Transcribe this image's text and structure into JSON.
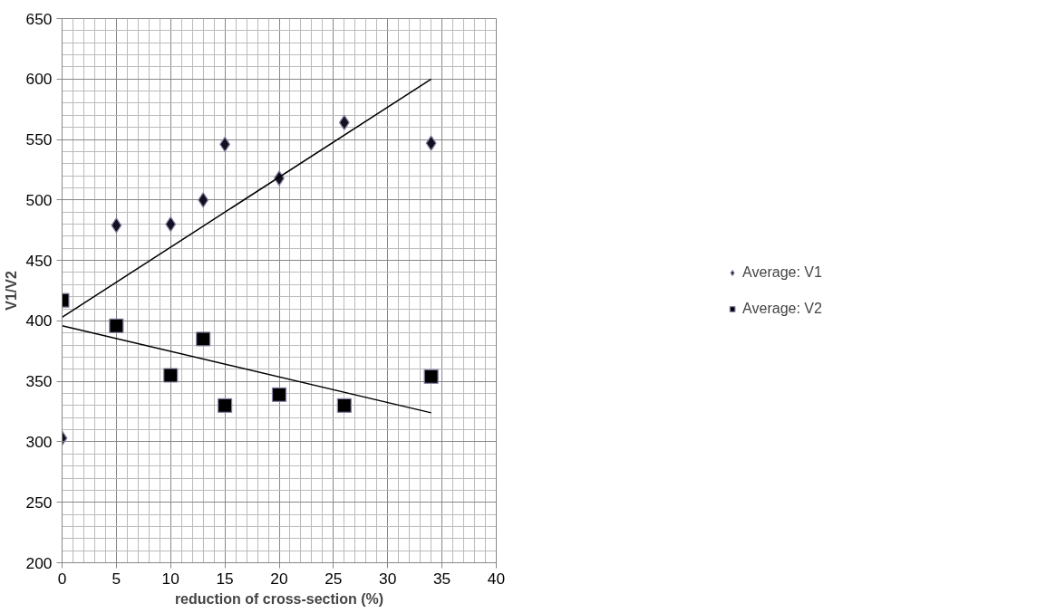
{
  "chart_data": {
    "type": "scatter",
    "xlabel": "reduction of cross-section (%)",
    "ylabel": "V1/V2",
    "xlim": [
      0,
      40
    ],
    "xticks": [
      0,
      5,
      10,
      15,
      20,
      25,
      30,
      35,
      40
    ],
    "ylim": [
      200,
      650
    ],
    "yticks": [
      200,
      250,
      300,
      350,
      400,
      450,
      500,
      550,
      600,
      650
    ],
    "grid": true,
    "legend": "right",
    "series": [
      {
        "name": "Average: V1",
        "color": "#14101f",
        "marker": "diamond",
        "x": [
          0,
          5,
          10,
          13,
          15,
          20,
          26,
          34
        ],
        "values": [
          303,
          479,
          480,
          500,
          546,
          518,
          564,
          547
        ]
      },
      {
        "name": "Average: V2",
        "color": "#000000",
        "marker": "square",
        "x": [
          0,
          5,
          10,
          13,
          15,
          20,
          26,
          34
        ],
        "values": [
          417,
          396,
          355,
          385,
          330,
          339,
          330,
          354
        ]
      },
      {
        "type": "line",
        "color": "#000000",
        "x": [
          0,
          34
        ],
        "values": [
          403,
          600
        ]
      },
      {
        "type": "line",
        "color": "#000000",
        "x": [
          0,
          34
        ],
        "values": [
          396,
          324
        ]
      }
    ]
  }
}
